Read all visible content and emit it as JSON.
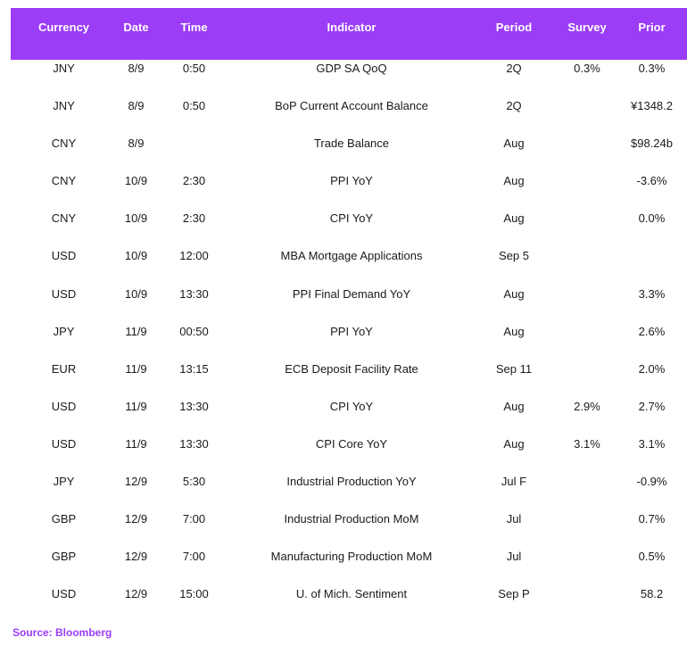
{
  "columns": {
    "currency": "Currency",
    "date": "Date",
    "time": "Time",
    "indicator": "Indicator",
    "period": "Period",
    "survey": "Survey",
    "prior": "Prior"
  },
  "rows": [
    {
      "currency": "JNY",
      "date": "8/9",
      "time": "0:50",
      "indicator": "GDP SA QoQ",
      "period": "2Q",
      "survey": "0.3%",
      "prior": "0.3%"
    },
    {
      "currency": "JNY",
      "date": "8/9",
      "time": "0:50",
      "indicator": "BoP Current Account Balance",
      "period": "2Q",
      "survey": "",
      "prior": "¥1348.2"
    },
    {
      "currency": "CNY",
      "date": "8/9",
      "time": "",
      "indicator": "Trade Balance",
      "period": "Aug",
      "survey": "",
      "prior": "$98.24b"
    },
    {
      "currency": "CNY",
      "date": "10/9",
      "time": "2:30",
      "indicator": "PPI YoY",
      "period": "Aug",
      "survey": "",
      "prior": "-3.6%"
    },
    {
      "currency": "CNY",
      "date": "10/9",
      "time": "2:30",
      "indicator": "CPI YoY",
      "period": "Aug",
      "survey": "",
      "prior": "0.0%"
    },
    {
      "currency": "USD",
      "date": "10/9",
      "time": "12:00",
      "indicator": "MBA Mortgage Applications",
      "period": "Sep 5",
      "survey": "",
      "prior": ""
    },
    {
      "currency": "USD",
      "date": "10/9",
      "time": "13:30",
      "indicator": "PPI Final Demand YoY",
      "period": "Aug",
      "survey": "",
      "prior": "3.3%"
    },
    {
      "currency": "JPY",
      "date": "11/9",
      "time": "00:50",
      "indicator": "PPI YoY",
      "period": "Aug",
      "survey": "",
      "prior": "2.6%"
    },
    {
      "currency": "EUR",
      "date": "11/9",
      "time": "13:15",
      "indicator": "ECB Deposit Facility Rate",
      "period": "Sep 11",
      "survey": "",
      "prior": "2.0%"
    },
    {
      "currency": "USD",
      "date": "11/9",
      "time": "13:30",
      "indicator": "CPI YoY",
      "period": "Aug",
      "survey": "2.9%",
      "prior": "2.7%"
    },
    {
      "currency": "USD",
      "date": "11/9",
      "time": "13:30",
      "indicator": "CPI Core YoY",
      "period": "Aug",
      "survey": "3.1%",
      "prior": "3.1%"
    },
    {
      "currency": "JPY",
      "date": "12/9",
      "time": "5:30",
      "indicator": "Industrial Production YoY",
      "period": "Jul F",
      "survey": "",
      "prior": "-0.9%"
    },
    {
      "currency": "GBP",
      "date": "12/9",
      "time": "7:00",
      "indicator": "Industrial Production MoM",
      "period": "Jul",
      "survey": "",
      "prior": "0.7%"
    },
    {
      "currency": "GBP",
      "date": "12/9",
      "time": "7:00",
      "indicator": "Manufacturing Production MoM",
      "period": "Jul",
      "survey": "",
      "prior": "0.5%"
    },
    {
      "currency": "USD",
      "date": "12/9",
      "time": "15:00",
      "indicator": "U. of Mich. Sentiment",
      "period": "Sep P",
      "survey": "",
      "prior": "58.2"
    }
  ],
  "source": "Source: Bloomberg"
}
